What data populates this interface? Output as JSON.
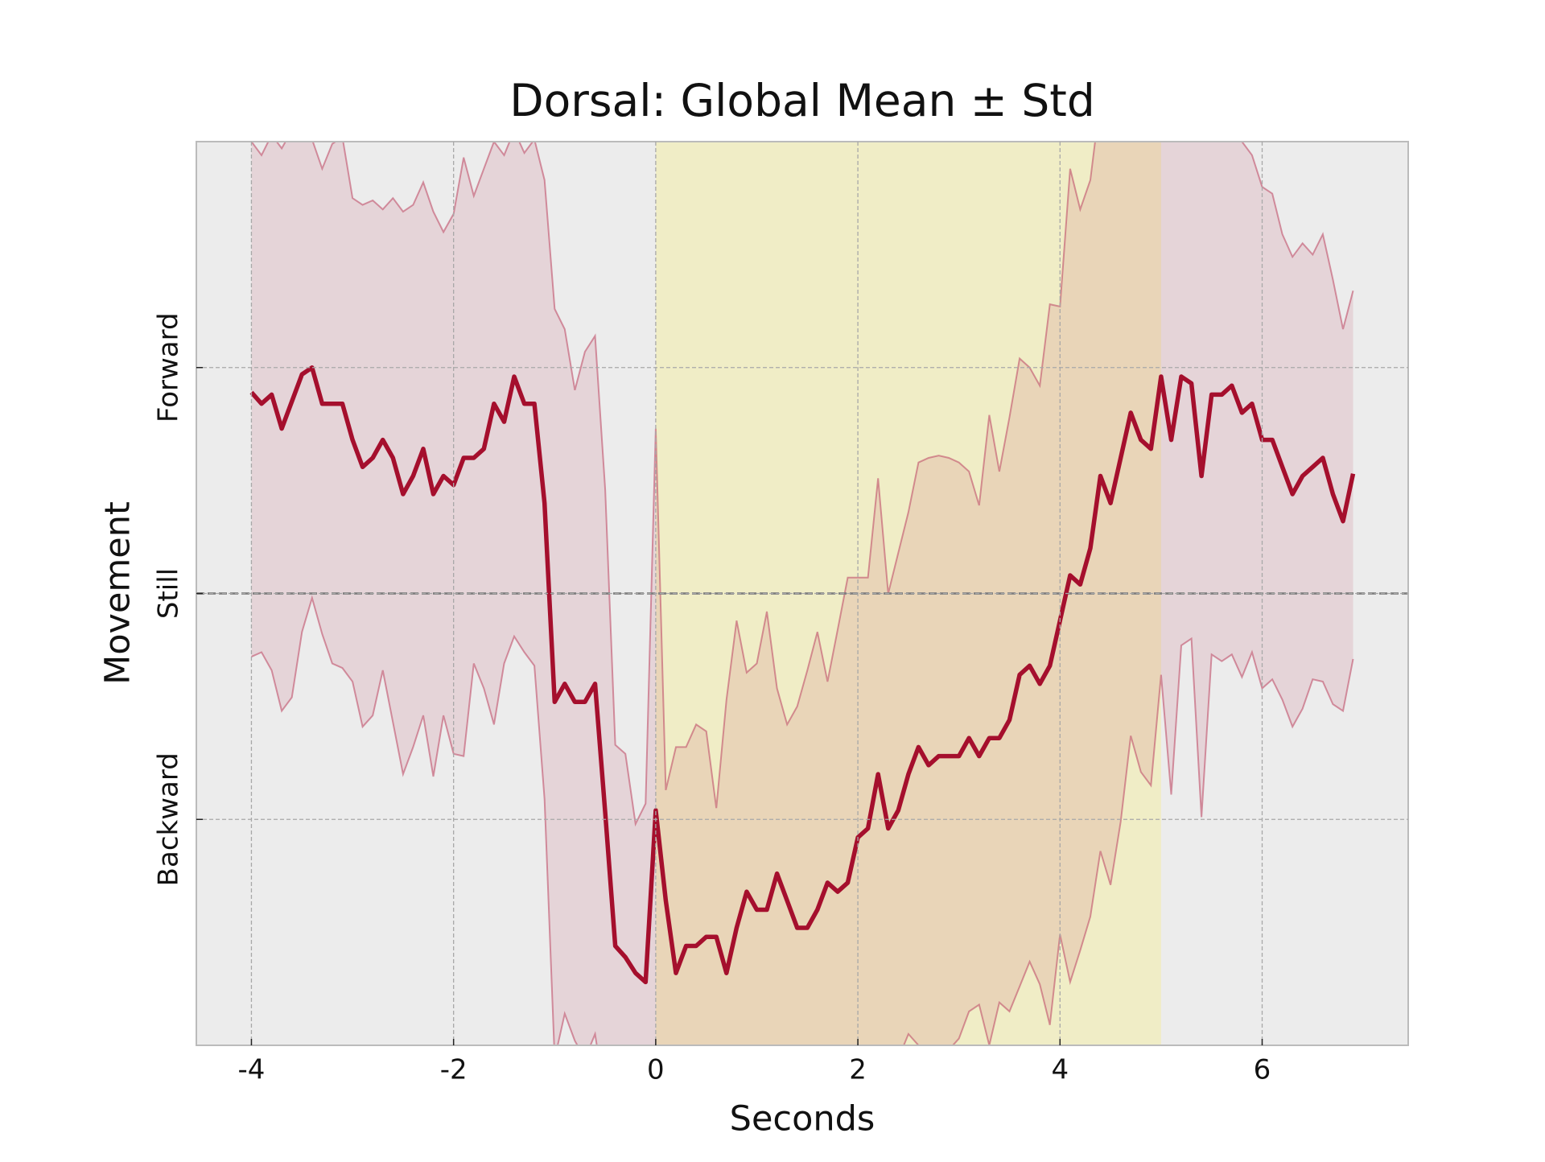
{
  "chart_data": {
    "type": "line",
    "title": "Dorsal: Global Mean ± Std",
    "x_label": "Seconds",
    "y_label": "Movement",
    "xlim": [
      -4.545,
      7.445
    ],
    "ylim": [
      -2,
      2
    ],
    "xticks": [
      -4,
      -2,
      0,
      2,
      4,
      6
    ],
    "yticks": [
      {
        "value": -1,
        "label": "Backward"
      },
      {
        "value": 0,
        "label": "Still"
      },
      {
        "value": 1,
        "label": "Forward"
      }
    ],
    "grid": true,
    "hline": 0,
    "spans": [
      {
        "x0": 0,
        "x1": 5,
        "color": "#f0edc6"
      }
    ],
    "x": [
      -4.0,
      -3.9,
      -3.8,
      -3.7,
      -3.6,
      -3.5,
      -3.4,
      -3.3,
      -3.2,
      -3.1,
      -3.0,
      -2.9,
      -2.8,
      -2.7,
      -2.6,
      -2.5,
      -2.4,
      -2.3,
      -2.2,
      -2.1,
      -2.0,
      -1.9,
      -1.8,
      -1.7,
      -1.6,
      -1.5,
      -1.4,
      -1.3,
      -1.2,
      -1.1,
      -1.0,
      -0.9,
      -0.8,
      -0.7,
      -0.6,
      -0.5,
      -0.4,
      -0.3,
      -0.2,
      -0.1,
      0.0,
      0.1,
      0.2,
      0.3,
      0.4,
      0.5,
      0.6,
      0.7,
      0.8,
      0.9,
      1.0,
      1.1,
      1.2,
      1.3,
      1.4,
      1.5,
      1.6,
      1.7,
      1.8,
      1.9,
      2.0,
      2.1,
      2.2,
      2.3,
      2.4,
      2.5,
      2.6,
      2.7,
      2.8,
      2.9,
      3.0,
      3.1,
      3.2,
      3.3,
      3.4,
      3.5,
      3.6,
      3.7,
      3.8,
      3.9,
      4.0,
      4.1,
      4.2,
      4.3,
      4.4,
      4.5,
      4.6,
      4.7,
      4.8,
      4.9,
      5.0,
      5.1,
      5.2,
      5.3,
      5.4,
      5.5,
      5.6,
      5.7,
      5.8,
      5.9,
      6.0,
      6.1,
      6.2,
      6.3,
      6.4,
      6.5,
      6.6,
      6.7,
      6.8,
      6.9
    ],
    "series": [
      {
        "color": "#a50f2d",
        "band_color": "#c0506a",
        "values": [
          0.89,
          0.84,
          0.88,
          0.73,
          0.85,
          0.97,
          1.0,
          0.84,
          0.84,
          0.84,
          0.68,
          0.56,
          0.6,
          0.68,
          0.6,
          0.44,
          0.52,
          0.64,
          0.44,
          0.52,
          0.48,
          0.6,
          0.6,
          0.64,
          0.84,
          0.76,
          0.96,
          0.84,
          0.84,
          0.4,
          -0.48,
          -0.4,
          -0.48,
          -0.48,
          -0.4,
          -0.97,
          -1.56,
          -1.61,
          -1.68,
          -1.72,
          -0.96,
          -1.36,
          -1.68,
          -1.56,
          -1.56,
          -1.52,
          -1.52,
          -1.68,
          -1.48,
          -1.32,
          -1.4,
          -1.4,
          -1.24,
          -1.36,
          -1.48,
          -1.48,
          -1.4,
          -1.28,
          -1.32,
          -1.28,
          -1.08,
          -1.04,
          -0.8,
          -1.04,
          -0.96,
          -0.8,
          -0.68,
          -0.76,
          -0.72,
          -0.72,
          -0.72,
          -0.64,
          -0.72,
          -0.64,
          -0.64,
          -0.56,
          -0.36,
          -0.32,
          -0.4,
          -0.32,
          -0.12,
          0.08,
          0.04,
          0.2,
          0.52,
          0.4,
          0.6,
          0.8,
          0.68,
          0.64,
          0.96,
          0.68,
          0.96,
          0.93,
          0.52,
          0.88,
          0.88,
          0.92,
          0.8,
          0.84,
          0.68,
          0.68,
          0.56,
          0.44,
          0.52,
          0.56,
          0.6,
          0.44,
          0.32,
          0.53
        ],
        "upper": [
          2.0,
          1.94,
          2.03,
          1.97,
          2.05,
          2.08,
          2.01,
          1.88,
          1.99,
          2.02,
          1.75,
          1.72,
          1.74,
          1.7,
          1.75,
          1.69,
          1.72,
          1.82,
          1.69,
          1.6,
          1.68,
          1.93,
          1.76,
          1.88,
          2.0,
          1.94,
          2.05,
          1.95,
          2.01,
          1.83,
          1.26,
          1.17,
          0.9,
          1.07,
          1.14,
          0.46,
          -0.67,
          -0.71,
          -1.02,
          -0.93,
          0.73,
          -0.87,
          -0.68,
          -0.68,
          -0.58,
          -0.61,
          -0.95,
          -0.47,
          -0.12,
          -0.35,
          -0.31,
          -0.08,
          -0.42,
          -0.58,
          -0.5,
          -0.34,
          -0.17,
          -0.39,
          -0.16,
          0.07,
          0.07,
          0.07,
          0.51,
          0.0,
          0.18,
          0.36,
          0.58,
          0.6,
          0.61,
          0.6,
          0.58,
          0.54,
          0.39,
          0.79,
          0.54,
          0.78,
          1.04,
          1.0,
          0.92,
          1.28,
          1.27,
          1.88,
          1.7,
          1.83,
          2.19,
          2.36,
          2.41,
          2.36,
          2.39,
          2.27,
          2.32,
          2.36,
          2.19,
          2.36,
          2.27,
          2.27,
          2.32,
          2.14,
          2.0,
          1.94,
          1.8,
          1.77,
          1.59,
          1.49,
          1.55,
          1.5,
          1.59,
          1.39,
          1.17,
          1.34
        ],
        "lower": [
          -0.28,
          -0.26,
          -0.34,
          -0.52,
          -0.46,
          -0.17,
          -0.02,
          -0.18,
          -0.31,
          -0.33,
          -0.39,
          -0.59,
          -0.54,
          -0.34,
          -0.57,
          -0.8,
          -0.68,
          -0.54,
          -0.81,
          -0.54,
          -0.71,
          -0.72,
          -0.31,
          -0.42,
          -0.58,
          -0.31,
          -0.19,
          -0.26,
          -0.32,
          -0.91,
          -2.06,
          -1.86,
          -1.98,
          -2.06,
          -1.95,
          -2.24,
          -2.33,
          -2.37,
          -2.42,
          -2.46,
          -2.55,
          -2.24,
          -2.42,
          -2.42,
          -2.37,
          -2.37,
          -2.46,
          -2.37,
          -2.28,
          -2.24,
          -2.28,
          -2.24,
          -2.15,
          -2.24,
          -2.28,
          -2.28,
          -2.24,
          -2.15,
          -2.19,
          -2.15,
          -2.06,
          -2.06,
          -2.02,
          -2.11,
          -2.06,
          -1.95,
          -2.0,
          -2.15,
          -2.06,
          -2.02,
          -1.97,
          -1.85,
          -1.82,
          -2.0,
          -1.81,
          -1.85,
          -1.74,
          -1.63,
          -1.73,
          -1.91,
          -1.51,
          -1.72,
          -1.58,
          -1.43,
          -1.14,
          -1.29,
          -1.01,
          -0.63,
          -0.79,
          -0.85,
          -0.36,
          -0.89,
          -0.23,
          -0.2,
          -0.99,
          -0.27,
          -0.3,
          -0.27,
          -0.37,
          -0.26,
          -0.42,
          -0.38,
          -0.47,
          -0.59,
          -0.51,
          -0.38,
          -0.39,
          -0.49,
          -0.52,
          -0.29
        ]
      }
    ]
  }
}
